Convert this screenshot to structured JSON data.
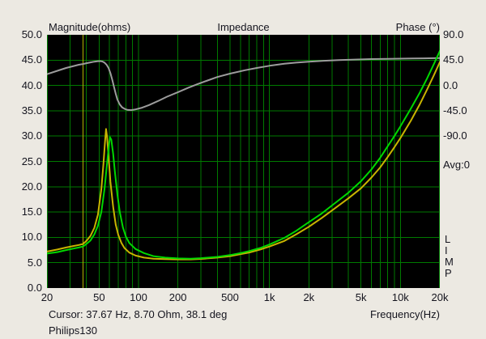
{
  "header": {
    "left": "Magnitude(ohms)",
    "center": "Impedance",
    "right": "Phase (°)"
  },
  "axes": {
    "left_ticks": [
      "50.0",
      "45.0",
      "40.0",
      "35.0",
      "30.0",
      "25.0",
      "20.0",
      "15.0",
      "10.0",
      "5.0",
      "0.0"
    ],
    "right_ticks": [
      "90.0",
      "45.0",
      "0.0",
      "-45.0",
      "-90.0"
    ],
    "right_avg": "Avg:0",
    "x_ticks": [
      {
        "f": 20,
        "label": "20"
      },
      {
        "f": 50,
        "label": "50"
      },
      {
        "f": 100,
        "label": "100"
      },
      {
        "f": 200,
        "label": "200"
      },
      {
        "f": 500,
        "label": "500"
      },
      {
        "f": 1000,
        "label": "1k"
      },
      {
        "f": 2000,
        "label": "2k"
      },
      {
        "f": 5000,
        "label": "5k"
      },
      {
        "f": 10000,
        "label": "10k"
      },
      {
        "f": 20000,
        "label": "20k"
      }
    ],
    "x_title": "Frequency(Hz)"
  },
  "limp_vertical": [
    "L",
    "I",
    "M",
    "P"
  ],
  "footer": {
    "cursor": "Cursor: 37.67 Hz, 8.70 Ohm, 38.1 deg",
    "project": "Philips130"
  },
  "colors": {
    "background": "#ece9e2",
    "plot_background": "#000000",
    "grid": "#007a00",
    "cursor_line": "#b4b400",
    "magnitude_yellow": "#c8b400",
    "magnitude_green": "#00d800",
    "phase_gray": "#9c9c9c",
    "text": "#14141e"
  },
  "chart_data": {
    "type": "line",
    "title": "Impedance",
    "xlabel": "Frequency(Hz)",
    "ylabel": "Magnitude(ohms)",
    "y2label": "Phase (°)",
    "x_scale": "log",
    "x_range": [
      20,
      20000
    ],
    "mag_range": [
      0,
      50
    ],
    "mag_tick_step": 5,
    "phase_top": 90,
    "phase_per_div": 45,
    "grid": true,
    "cursor": {
      "freq_hz": 37.67,
      "ohm": 8.7,
      "deg": 38.1
    },
    "series": [
      {
        "name": "phase",
        "axis": "phase",
        "color_key": "phase_gray",
        "width": 2,
        "points": [
          [
            20,
            20
          ],
          [
            24,
            26
          ],
          [
            28,
            31
          ],
          [
            32,
            34.5
          ],
          [
            35,
            36.8
          ],
          [
            37.67,
            38.1
          ],
          [
            40,
            39.5
          ],
          [
            43,
            41
          ],
          [
            46,
            42.3
          ],
          [
            49,
            43.2
          ],
          [
            51,
            43.3
          ],
          [
            53,
            42.5
          ],
          [
            55,
            40.5
          ],
          [
            57,
            37
          ],
          [
            59,
            31
          ],
          [
            61,
            22
          ],
          [
            63,
            10
          ],
          [
            65,
            -3
          ],
          [
            67,
            -15
          ],
          [
            69,
            -25
          ],
          [
            72,
            -34
          ],
          [
            75,
            -39
          ],
          [
            79,
            -42
          ],
          [
            83,
            -43.5
          ],
          [
            88,
            -43.8
          ],
          [
            95,
            -42.5
          ],
          [
            105,
            -40
          ],
          [
            120,
            -35
          ],
          [
            140,
            -28
          ],
          [
            165,
            -20
          ],
          [
            200,
            -12
          ],
          [
            240,
            -4
          ],
          [
            280,
            2
          ],
          [
            330,
            8
          ],
          [
            400,
            15
          ],
          [
            500,
            21
          ],
          [
            650,
            27
          ],
          [
            800,
            31
          ],
          [
            1000,
            35
          ],
          [
            1300,
            38.5
          ],
          [
            1600,
            40.6
          ],
          [
            2000,
            42.2
          ],
          [
            2600,
            43.8
          ],
          [
            3400,
            45
          ],
          [
            4500,
            46
          ],
          [
            6000,
            46.8
          ],
          [
            8000,
            47.3
          ],
          [
            11000,
            47.8
          ],
          [
            15000,
            48.2
          ],
          [
            20000,
            48.6
          ]
        ]
      },
      {
        "name": "magnitude-yellow",
        "axis": "magnitude",
        "color_key": "magnitude_yellow",
        "width": 2,
        "points": [
          [
            20,
            7.2
          ],
          [
            24,
            7.6
          ],
          [
            28,
            8.0
          ],
          [
            32,
            8.3
          ],
          [
            35,
            8.5
          ],
          [
            37.67,
            8.7
          ],
          [
            40,
            9.3
          ],
          [
            43,
            10.3
          ],
          [
            46,
            11.9
          ],
          [
            49,
            14.5
          ],
          [
            52,
            19.5
          ],
          [
            54,
            24.5
          ],
          [
            55.5,
            29
          ],
          [
            56.5,
            31.4
          ],
          [
            57.5,
            30
          ],
          [
            59,
            26
          ],
          [
            61,
            21
          ],
          [
            64,
            16
          ],
          [
            67,
            12.5
          ],
          [
            70,
            10.5
          ],
          [
            74,
            8.9
          ],
          [
            78,
            7.9
          ],
          [
            85,
            7.0
          ],
          [
            95,
            6.4
          ],
          [
            110,
            6.0
          ],
          [
            130,
            5.8
          ],
          [
            160,
            5.7
          ],
          [
            200,
            5.65
          ],
          [
            250,
            5.65
          ],
          [
            300,
            5.75
          ],
          [
            400,
            6.0
          ],
          [
            500,
            6.3
          ],
          [
            600,
            6.7
          ],
          [
            700,
            7.0
          ],
          [
            850,
            7.6
          ],
          [
            1000,
            8.2
          ],
          [
            1300,
            9.3
          ],
          [
            1600,
            10.6
          ],
          [
            2000,
            12.1
          ],
          [
            2500,
            13.8
          ],
          [
            3000,
            15.3
          ],
          [
            4000,
            17.7
          ],
          [
            5000,
            19.7
          ],
          [
            6000,
            21.8
          ],
          [
            7000,
            23.8
          ],
          [
            8000,
            25.9
          ],
          [
            9000,
            27.8
          ],
          [
            10000,
            29.6
          ],
          [
            12000,
            33
          ],
          [
            14000,
            36.2
          ],
          [
            16000,
            39.2
          ],
          [
            18000,
            42
          ],
          [
            20000,
            44.6
          ]
        ]
      },
      {
        "name": "magnitude-green",
        "axis": "magnitude",
        "color_key": "magnitude_green",
        "width": 2,
        "points": [
          [
            20,
            6.8
          ],
          [
            24,
            7.1
          ],
          [
            28,
            7.5
          ],
          [
            32,
            7.8
          ],
          [
            35,
            8.0
          ],
          [
            37.67,
            8.2
          ],
          [
            40,
            8.7
          ],
          [
            43,
            9.4
          ],
          [
            46,
            10.6
          ],
          [
            49,
            12.3
          ],
          [
            52,
            15
          ],
          [
            55,
            19.5
          ],
          [
            57,
            23.5
          ],
          [
            59,
            27.5
          ],
          [
            60.5,
            29.8
          ],
          [
            62,
            29.3
          ],
          [
            64,
            26.5
          ],
          [
            66,
            23
          ],
          [
            69,
            18.5
          ],
          [
            72,
            15
          ],
          [
            76,
            12
          ],
          [
            80,
            10.2
          ],
          [
            85,
            8.9
          ],
          [
            95,
            7.7
          ],
          [
            110,
            6.9
          ],
          [
            130,
            6.3
          ],
          [
            160,
            6.0
          ],
          [
            200,
            5.85
          ],
          [
            250,
            5.8
          ],
          [
            300,
            5.9
          ],
          [
            400,
            6.15
          ],
          [
            500,
            6.5
          ],
          [
            600,
            6.9
          ],
          [
            700,
            7.3
          ],
          [
            850,
            7.9
          ],
          [
            1000,
            8.6
          ],
          [
            1300,
            9.9
          ],
          [
            1600,
            11.3
          ],
          [
            2000,
            13.0
          ],
          [
            2500,
            14.7
          ],
          [
            3000,
            16.3
          ],
          [
            4000,
            18.8
          ],
          [
            5000,
            21.1
          ],
          [
            6000,
            23.4
          ],
          [
            7000,
            25.7
          ],
          [
            8000,
            28.0
          ],
          [
            9000,
            30.0
          ],
          [
            10000,
            31.9
          ],
          [
            12000,
            35.4
          ],
          [
            14000,
            38.5
          ],
          [
            16000,
            41.4
          ],
          [
            18000,
            44.2
          ],
          [
            20000,
            46.8
          ]
        ]
      }
    ]
  }
}
